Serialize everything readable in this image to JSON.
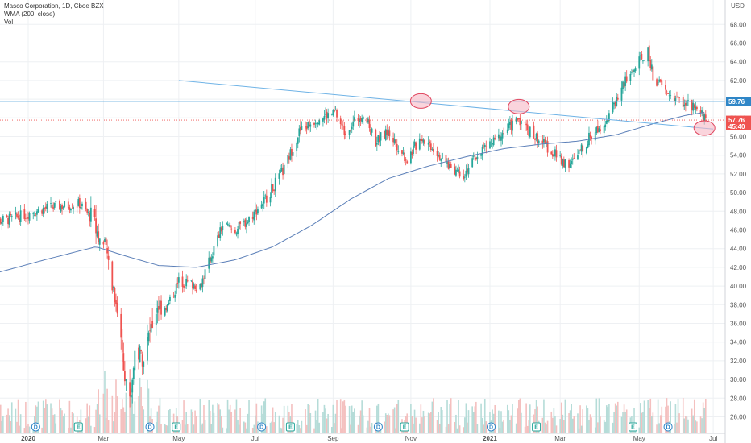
{
  "legend": {
    "symbol_line": "Masco Corporation, 1D, Cboe BZX",
    "wma_line": "WMA (200, close)",
    "vol_line": "Vol"
  },
  "currency": "USD",
  "colors": {
    "up": "#26a69a",
    "down": "#ef5350",
    "vol_up": "#b5dcd8",
    "vol_down": "#f4c0bf",
    "wma": "#5b7fb8",
    "trend": "#6fb3e6",
    "hline": "#5aa9de",
    "circle_fill": "#f7b8c4",
    "circle_stroke": "#e0455e",
    "price_tag": "#ef5350",
    "level_tag": "#2f86c7",
    "earn_e": "#26a69a",
    "div_d": "#2f86c7",
    "grid": "#eef0f3"
  },
  "chart_data": {
    "type": "candlestick",
    "title": "Masco Corporation, 1D, Cboe BZX",
    "y_unit": "USD",
    "ylim": [
      24.5,
      70.5
    ],
    "y_ticks": [
      "26.00",
      "28.00",
      "30.00",
      "32.00",
      "34.00",
      "36.00",
      "38.00",
      "40.00",
      "42.00",
      "44.00",
      "46.00",
      "48.00",
      "50.00",
      "52.00",
      "54.00",
      "56.00",
      "58.00",
      "60.00",
      "62.00",
      "64.00",
      "66.00",
      "68.00"
    ],
    "x_ticks": [
      "2020",
      "Mar",
      "May",
      "Jul",
      "Sep",
      "Nov",
      "2021",
      "Mar",
      "May",
      "Jul"
    ],
    "x_tick_dates": [
      "2020-01-02",
      "2020-03-02",
      "2020-05-01",
      "2020-07-01",
      "2020-09-01",
      "2020-11-02",
      "2021-01-04",
      "2021-03-01",
      "2021-05-03",
      "2021-07-01"
    ],
    "grid": true,
    "legend_position": "top-left",
    "last_price": "57.76",
    "last_price_countdown": "45:40",
    "horizontal_level": 59.76,
    "horizontal_level_label": "59.76",
    "trendline": {
      "start": [
        "2020-05-01",
        62.0
      ],
      "end": [
        "2021-07-01",
        56.8
      ]
    },
    "highlight_points": [
      [
        "2020-11-10",
        59.8
      ],
      [
        "2021-01-27",
        59.2
      ],
      [
        "2021-06-24",
        56.9
      ]
    ],
    "price_anchors": [
      [
        "2019-12-02",
        46.8
      ],
      [
        "2019-12-20",
        47.2
      ],
      [
        "2020-01-15",
        48.3
      ],
      [
        "2020-02-12",
        48.8
      ],
      [
        "2020-02-21",
        47.3
      ],
      [
        "2020-03-05",
        43.2
      ],
      [
        "2020-03-12",
        38.5
      ],
      [
        "2020-03-18",
        32.0
      ],
      [
        "2020-03-23",
        27.5
      ],
      [
        "2020-03-27",
        33.0
      ],
      [
        "2020-04-03",
        32.5
      ],
      [
        "2020-04-14",
        38.0
      ],
      [
        "2020-04-22",
        37.8
      ],
      [
        "2020-05-01",
        40.5
      ],
      [
        "2020-05-18",
        40.0
      ],
      [
        "2020-06-05",
        46.5
      ],
      [
        "2020-06-15",
        46.0
      ],
      [
        "2020-06-25",
        47.0
      ],
      [
        "2020-07-01",
        48.0
      ],
      [
        "2020-07-10",
        49.5
      ],
      [
        "2020-07-24",
        52.5
      ],
      [
        "2020-08-05",
        56.5
      ],
      [
        "2020-08-20",
        58.0
      ],
      [
        "2020-09-03",
        58.5
      ],
      [
        "2020-09-10",
        56.5
      ],
      [
        "2020-09-25",
        58.5
      ],
      [
        "2020-10-05",
        55.5
      ],
      [
        "2020-10-15",
        56.5
      ],
      [
        "2020-10-30",
        53.5
      ],
      [
        "2020-11-10",
        56.0
      ],
      [
        "2020-11-20",
        54.8
      ],
      [
        "2020-12-01",
        53.0
      ],
      [
        "2020-12-14",
        52.0
      ],
      [
        "2020-12-28",
        54.5
      ],
      [
        "2021-01-08",
        55.5
      ],
      [
        "2021-01-27",
        58.0
      ],
      [
        "2021-02-05",
        56.5
      ],
      [
        "2021-02-18",
        55.0
      ],
      [
        "2021-03-01",
        53.5
      ],
      [
        "2021-03-10",
        53.0
      ],
      [
        "2021-03-25",
        56.0
      ],
      [
        "2021-04-08",
        58.0
      ],
      [
        "2021-04-20",
        61.5
      ],
      [
        "2021-05-03",
        64.0
      ],
      [
        "2021-05-10",
        65.0
      ],
      [
        "2021-05-14",
        62.5
      ],
      [
        "2021-05-26",
        60.5
      ],
      [
        "2021-06-10",
        59.5
      ],
      [
        "2021-06-22",
        58.3
      ],
      [
        "2021-06-25",
        57.76
      ]
    ],
    "wma_anchors": [
      [
        "2019-12-02",
        41.2
      ],
      [
        "2020-01-15",
        42.8
      ],
      [
        "2020-02-25",
        44.2
      ],
      [
        "2020-03-20",
        43.2
      ],
      [
        "2020-04-15",
        42.2
      ],
      [
        "2020-05-15",
        42.0
      ],
      [
        "2020-06-15",
        42.8
      ],
      [
        "2020-07-15",
        44.2
      ],
      [
        "2020-08-15",
        46.5
      ],
      [
        "2020-09-15",
        49.3
      ],
      [
        "2020-10-15",
        51.5
      ],
      [
        "2020-11-15",
        52.8
      ],
      [
        "2020-12-15",
        53.8
      ],
      [
        "2021-01-15",
        54.7
      ],
      [
        "2021-02-15",
        55.2
      ],
      [
        "2021-03-15",
        55.5
      ],
      [
        "2021-04-15",
        56.2
      ],
      [
        "2021-05-15",
        57.4
      ],
      [
        "2021-06-10",
        58.3
      ],
      [
        "2021-06-25",
        58.6
      ]
    ],
    "events": [
      {
        "type": "D",
        "date": "2020-01-08"
      },
      {
        "type": "E",
        "date": "2020-02-11"
      },
      {
        "type": "D",
        "date": "2020-04-08"
      },
      {
        "type": "E",
        "date": "2020-04-29"
      },
      {
        "type": "D",
        "date": "2020-07-06"
      },
      {
        "type": "E",
        "date": "2020-07-29"
      },
      {
        "type": "D",
        "date": "2020-10-07"
      },
      {
        "type": "E",
        "date": "2020-10-28"
      },
      {
        "type": "D",
        "date": "2021-01-05"
      },
      {
        "type": "E",
        "date": "2021-02-10"
      },
      {
        "type": "E",
        "date": "2021-04-28"
      },
      {
        "type": "D",
        "date": "2021-05-26"
      }
    ]
  }
}
